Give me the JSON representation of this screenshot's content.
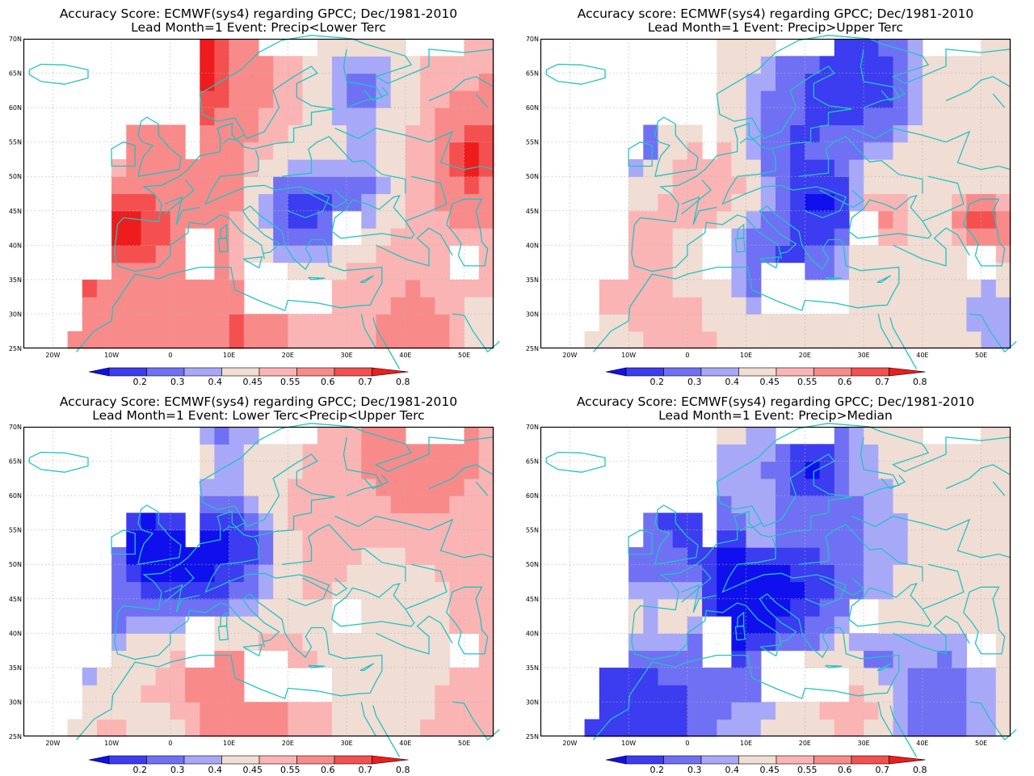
{
  "colors": {
    "coast": "#22c3c3",
    "frame": "#000000",
    "grid": "#b4b4b4",
    "nodata": "#ffffff",
    "scale": [
      "#1010ee",
      "#3c3cf0",
      "#7070f4",
      "#a8a8f8",
      "#f0ddd4",
      "#fbb4b4",
      "#f98a8a",
      "#f55050",
      "#ee1c1c"
    ]
  },
  "colorbar": {
    "labels": [
      "0.2",
      "0.3",
      "0.4",
      "0.45",
      "0.55",
      "0.6",
      "0.7",
      "0.8"
    ]
  },
  "axes": {
    "lon_labels": [
      "20W",
      "10W",
      "0",
      "10E",
      "20E",
      "30E",
      "40E",
      "50E"
    ],
    "lat_labels": [
      "70N",
      "65N",
      "60N",
      "55N",
      "50N",
      "45N",
      "40N",
      "35N",
      "30N",
      "25N"
    ]
  },
  "panels": [
    {
      "title_line1": "Accuracy Score: ECMWF(sys4) regarding GPCC; Dec/1981-2010",
      "title_line2": "Lead Month=1 Event: Precip<Lower Terc",
      "seed": 11,
      "bias": 0.1
    },
    {
      "title_line1": "Accuracy score: ECMWF(sys4) regarding GPCC; Dec/1981-2010",
      "title_line2": "Lead Month=1 Event: Precip>Upper Terc",
      "seed": 23,
      "bias": 0.01
    },
    {
      "title_line1": "Accuracy Score: ECMWF(sys4) regarding GPCC; Dec/1981-2010",
      "title_line2": "Lead Month=1 Event: Lower Terc<Precip<Upper Terc",
      "seed": 37,
      "bias": 0.06
    },
    {
      "title_line1": "Accuracy Score: ECMWF(sys4) regarding GPCC; Dec/1981-2010",
      "title_line2": "Lead Month=1 Event: Precip>Median",
      "seed": 53,
      "bias": -0.04
    }
  ]
}
